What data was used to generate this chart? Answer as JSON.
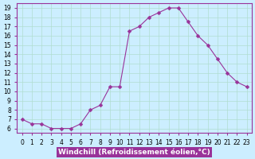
{
  "x": [
    0,
    1,
    2,
    3,
    4,
    5,
    6,
    7,
    8,
    9,
    10,
    11,
    12,
    13,
    14,
    15,
    16,
    17,
    18,
    19,
    20,
    21,
    22,
    23
  ],
  "y": [
    7.0,
    6.5,
    6.5,
    6.0,
    6.0,
    6.0,
    6.5,
    8.0,
    8.5,
    10.5,
    10.5,
    16.5,
    17.0,
    18.0,
    18.5,
    19.0,
    19.0,
    17.5,
    16.0,
    15.0,
    13.5,
    12.0,
    11.0,
    10.5
  ],
  "line_color": "#993399",
  "marker": "D",
  "marker_size": 2.5,
  "bg_color": "#cceeff",
  "grid_color": "#b0ddd0",
  "xlabel": "Windchill (Refroidissement éolien,°C)",
  "xlabel_color": "#ffffff",
  "xlabel_bg": "#993399",
  "ylabel_ticks": [
    6,
    7,
    8,
    9,
    10,
    11,
    12,
    13,
    14,
    15,
    16,
    17,
    18,
    19
  ],
  "xlim": [
    -0.5,
    23.5
  ],
  "ylim": [
    5.5,
    19.5
  ],
  "tick_fontsize": 5.5,
  "xlabel_fontsize": 6.5
}
